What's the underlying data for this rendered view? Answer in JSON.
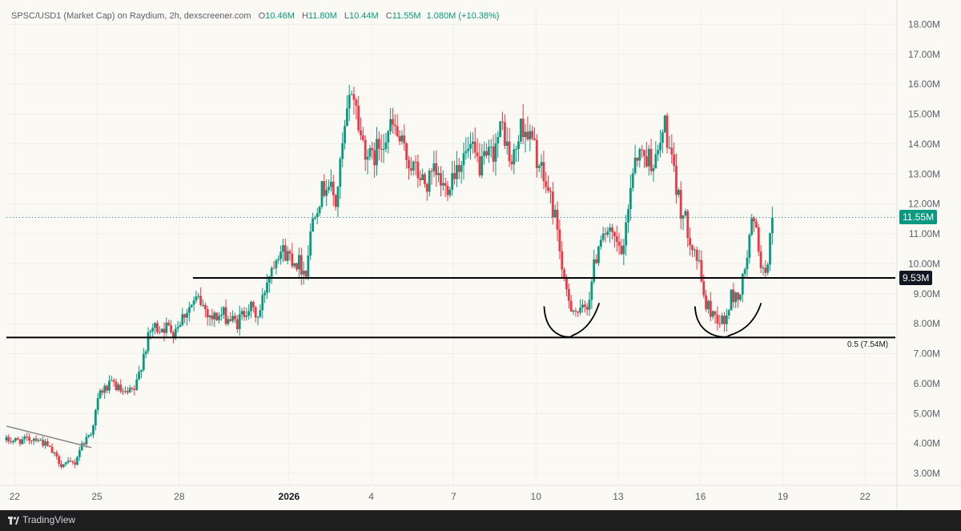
{
  "header": {
    "symbol": "SPSC/USD1 (Market Cap) on Raydium, 2h, dexscreener.com",
    "o_key": "O",
    "o_val": "10.46M",
    "h_key": "H",
    "h_val": "11.80M",
    "l_key": "L",
    "l_val": "10.44M",
    "c_key": "C",
    "c_val": "11.55M",
    "change": "1.080M (+10.38%)"
  },
  "colors": {
    "up": "#089981",
    "down": "#f23645",
    "bg": "#fbf9f3",
    "grid": "#f0efe9"
  },
  "chart_data": {
    "type": "candlestick",
    "y_unit": "M",
    "ylim": [
      2.6,
      18.6
    ],
    "y_ticks": [
      {
        "v": 3,
        "label": "3.00M"
      },
      {
        "v": 4,
        "label": "4.00M"
      },
      {
        "v": 5,
        "label": "5.00M"
      },
      {
        "v": 6,
        "label": "6.00M"
      },
      {
        "v": 7,
        "label": "7.00M"
      },
      {
        "v": 8,
        "label": "8.00M"
      },
      {
        "v": 9,
        "label": "9.00M"
      },
      {
        "v": 10,
        "label": "10.00M"
      },
      {
        "v": 11,
        "label": "11.00M"
      },
      {
        "v": 12,
        "label": "12.00M"
      },
      {
        "v": 13,
        "label": "13.00M"
      },
      {
        "v": 14,
        "label": "14.00M"
      },
      {
        "v": 15,
        "label": "15.00M"
      },
      {
        "v": 16,
        "label": "16.00M"
      },
      {
        "v": 17,
        "label": "17.00M"
      },
      {
        "v": 18,
        "label": "18.00M"
      }
    ],
    "xlim": [
      21.7,
      54.1
    ],
    "x_ticks": [
      {
        "day": 22,
        "label": "22",
        "bold": false
      },
      {
        "day": 25,
        "label": "25",
        "bold": false
      },
      {
        "day": 28,
        "label": "28",
        "bold": false
      },
      {
        "day": 32,
        "label": "2026",
        "bold": true
      },
      {
        "day": 35,
        "label": "4",
        "bold": false
      },
      {
        "day": 38,
        "label": "7",
        "bold": false
      },
      {
        "day": 41,
        "label": "10",
        "bold": false
      },
      {
        "day": 44,
        "label": "13",
        "bold": false
      },
      {
        "day": 47,
        "label": "16",
        "bold": false
      },
      {
        "day": 50,
        "label": "19",
        "bold": false
      },
      {
        "day": 53,
        "label": "22",
        "bold": false
      }
    ],
    "last_price": {
      "value": 11.55,
      "label": "11.55M"
    },
    "levels": [
      {
        "value": 9.53,
        "label": "9.53M",
        "from_day": 28.5,
        "style": "badge"
      },
      {
        "value": 7.54,
        "label": "0.5 (7.54M)",
        "from_day": 21.7,
        "style": "fib"
      }
    ],
    "trendline": {
      "from": {
        "day": 21.7,
        "value": 4.58
      },
      "to": {
        "day": 24.8,
        "value": 3.86
      }
    },
    "cup_arcs": [
      {
        "from_day": 41.3,
        "to_day": 43.3,
        "bottom": 7.58,
        "top": 8.35
      },
      {
        "from_day": 46.8,
        "to_day": 49.2,
        "bottom": 7.58,
        "top": 8.35
      }
    ],
    "price_path": [
      [
        21.7,
        4.1
      ],
      [
        22.3,
        4.1
      ],
      [
        22.8,
        4.2
      ],
      [
        23.2,
        3.9
      ],
      [
        23.7,
        3.3
      ],
      [
        24.2,
        3.35
      ],
      [
        24.4,
        3.9
      ],
      [
        24.8,
        4.4
      ],
      [
        25.1,
        5.7
      ],
      [
        25.6,
        6.0
      ],
      [
        26.0,
        5.6
      ],
      [
        26.4,
        5.8
      ],
      [
        26.7,
        7.0
      ],
      [
        27.0,
        7.85
      ],
      [
        27.4,
        7.9
      ],
      [
        27.8,
        7.8
      ],
      [
        28.3,
        8.5
      ],
      [
        28.7,
        8.8
      ],
      [
        29.2,
        8.2
      ],
      [
        29.6,
        8.3
      ],
      [
        30.1,
        8.0
      ],
      [
        30.5,
        8.6
      ],
      [
        30.9,
        8.2
      ],
      [
        31.2,
        9.5
      ],
      [
        31.6,
        10.5
      ],
      [
        32.0,
        10.3
      ],
      [
        32.4,
        10.0
      ],
      [
        32.6,
        9.7
      ],
      [
        32.9,
        11.8
      ],
      [
        33.4,
        12.8
      ],
      [
        33.7,
        12.0
      ],
      [
        34.0,
        14.2
      ],
      [
        34.3,
        16.0
      ],
      [
        34.6,
        14.3
      ],
      [
        35.0,
        13.4
      ],
      [
        35.4,
        14.2
      ],
      [
        35.8,
        14.6
      ],
      [
        36.2,
        13.7
      ],
      [
        36.6,
        13.1
      ],
      [
        37.0,
        12.6
      ],
      [
        37.3,
        13.0
      ],
      [
        37.7,
        12.5
      ],
      [
        38.1,
        13.3
      ],
      [
        38.6,
        13.8
      ],
      [
        39.0,
        13.2
      ],
      [
        39.4,
        13.7
      ],
      [
        39.8,
        14.6
      ],
      [
        40.1,
        13.2
      ],
      [
        40.5,
        14.7
      ],
      [
        40.9,
        14.0
      ],
      [
        41.2,
        13.0
      ],
      [
        41.5,
        12.3
      ],
      [
        41.8,
        11.2
      ],
      [
        42.0,
        9.3
      ],
      [
        42.3,
        8.6
      ],
      [
        42.6,
        8.3
      ],
      [
        42.9,
        8.7
      ],
      [
        43.1,
        9.8
      ],
      [
        43.4,
        11.2
      ],
      [
        43.8,
        10.8
      ],
      [
        44.2,
        10.3
      ],
      [
        44.3,
        11.5
      ],
      [
        44.6,
        13.7
      ],
      [
        45.0,
        13.6
      ],
      [
        45.4,
        13.4
      ],
      [
        45.7,
        14.7
      ],
      [
        46.0,
        13.0
      ],
      [
        46.3,
        11.8
      ],
      [
        46.6,
        11.0
      ],
      [
        46.9,
        10.1
      ],
      [
        47.2,
        8.6
      ],
      [
        47.5,
        8.3
      ],
      [
        47.9,
        8.0
      ],
      [
        48.1,
        8.9
      ],
      [
        48.4,
        8.9
      ],
      [
        48.6,
        9.7
      ],
      [
        48.9,
        11.5
      ],
      [
        49.1,
        10.7
      ],
      [
        49.3,
        9.5
      ],
      [
        49.5,
        10.5
      ],
      [
        49.6,
        11.55
      ]
    ]
  },
  "footer": {
    "brand": "TradingView"
  }
}
